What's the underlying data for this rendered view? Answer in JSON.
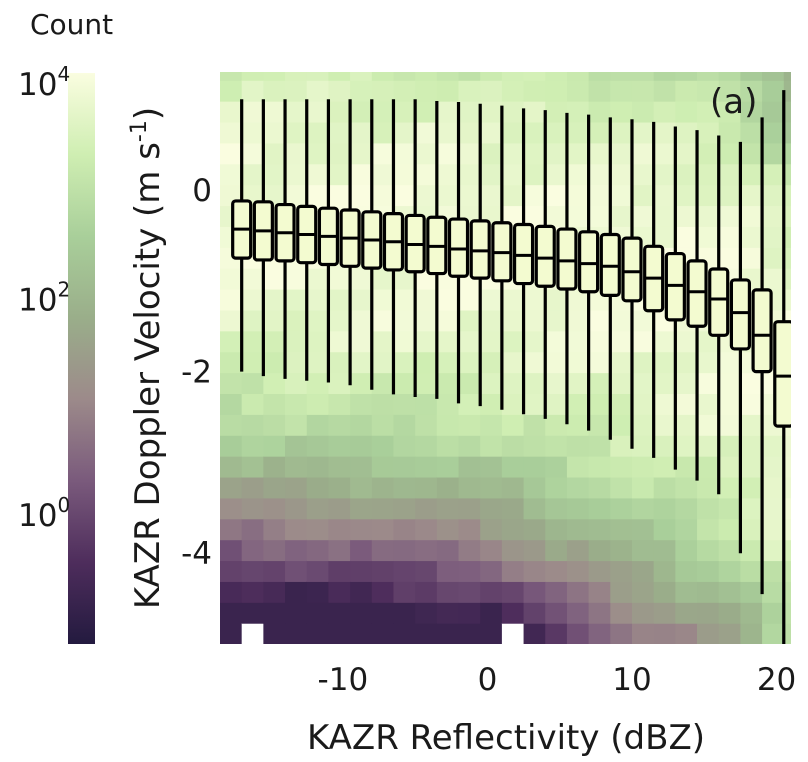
{
  "chart_data": {
    "type": "heatmap",
    "panel_label": "(a)",
    "xlabel": "KAZR Reflectivity (dBZ)",
    "ylabel_main": "KAZR Doppler Velocity (m s",
    "ylabel_exp": "-1",
    "ylabel_close": ")",
    "xlim": [
      -18.5,
      21
    ],
    "ylim": [
      -5,
      1.3
    ],
    "xticks": [
      -10,
      0,
      10,
      20
    ],
    "xtick_labels": [
      "-10",
      "0",
      "10",
      "20"
    ],
    "yticks": [
      0,
      -2,
      -4
    ],
    "ytick_labels": [
      "0",
      "-2",
      "-4"
    ],
    "heatmap_cell_dbz": 1.5,
    "heatmap_cell_ms": 0.23,
    "colorbar": {
      "title": "Count",
      "scale": "log",
      "range_log10": [
        -1.3,
        4
      ],
      "tick_log10": [
        4,
        2,
        0
      ],
      "tick_base": "10",
      "tick_exponents": [
        "4",
        "2",
        "0"
      ],
      "colors": [
        "#231a3f",
        "#4e2d5c",
        "#7a5a7c",
        "#9c8a8a",
        "#9aae8a",
        "#a9cf9a",
        "#cfeeb2",
        "#fafde0"
      ]
    },
    "empty_cells": [
      {
        "x_dbz": -16.5,
        "y_ms": -4.89
      },
      {
        "x_dbz": 1.5,
        "y_ms": -4.89
      }
    ],
    "boxplots": [
      {
        "x": -17,
        "whisker_low": -2.0,
        "q1": -0.75,
        "median": -0.43,
        "q3": -0.12,
        "whisker_high": 1.0
      },
      {
        "x": -15.5,
        "whisker_low": -2.05,
        "q1": -0.77,
        "median": -0.45,
        "q3": -0.13,
        "whisker_high": 1.0
      },
      {
        "x": -14,
        "whisker_low": -2.08,
        "q1": -0.78,
        "median": -0.47,
        "q3": -0.16,
        "whisker_high": 1.0
      },
      {
        "x": -12.5,
        "whisker_low": -2.1,
        "q1": -0.8,
        "median": -0.49,
        "q3": -0.18,
        "whisker_high": 1.0
      },
      {
        "x": -11,
        "whisker_low": -2.12,
        "q1": -0.82,
        "median": -0.51,
        "q3": -0.2,
        "whisker_high": 1.0
      },
      {
        "x": -9.5,
        "whisker_low": -2.15,
        "q1": -0.84,
        "median": -0.53,
        "q3": -0.22,
        "whisker_high": 1.0
      },
      {
        "x": -8,
        "whisker_low": -2.2,
        "q1": -0.86,
        "median": -0.55,
        "q3": -0.24,
        "whisker_high": 1.0
      },
      {
        "x": -6.5,
        "whisker_low": -2.25,
        "q1": -0.88,
        "median": -0.57,
        "q3": -0.26,
        "whisker_high": 1.0
      },
      {
        "x": -5,
        "whisker_low": -2.28,
        "q1": -0.9,
        "median": -0.6,
        "q3": -0.28,
        "whisker_high": 1.0
      },
      {
        "x": -3.5,
        "whisker_low": -2.3,
        "q1": -0.92,
        "median": -0.62,
        "q3": -0.3,
        "whisker_high": 0.98
      },
      {
        "x": -2,
        "whisker_low": -2.35,
        "q1": -0.95,
        "median": -0.65,
        "q3": -0.32,
        "whisker_high": 0.97
      },
      {
        "x": -0.5,
        "whisker_low": -2.38,
        "q1": -0.97,
        "median": -0.67,
        "q3": -0.34,
        "whisker_high": 0.95
      },
      {
        "x": 1,
        "whisker_low": -2.42,
        "q1": -1.0,
        "median": -0.69,
        "q3": -0.36,
        "whisker_high": 0.93
      },
      {
        "x": 2.5,
        "whisker_low": -2.47,
        "q1": -1.03,
        "median": -0.72,
        "q3": -0.38,
        "whisker_high": 0.9
      },
      {
        "x": 4,
        "whisker_low": -2.52,
        "q1": -1.06,
        "median": -0.75,
        "q3": -0.4,
        "whisker_high": 0.88
      },
      {
        "x": 5.5,
        "whisker_low": -2.58,
        "q1": -1.09,
        "median": -0.78,
        "q3": -0.43,
        "whisker_high": 0.85
      },
      {
        "x": 7,
        "whisker_low": -2.65,
        "q1": -1.12,
        "median": -0.81,
        "q3": -0.46,
        "whisker_high": 0.83
      },
      {
        "x": 8.5,
        "whisker_low": -2.75,
        "q1": -1.16,
        "median": -0.84,
        "q3": -0.49,
        "whisker_high": 0.8
      },
      {
        "x": 10,
        "whisker_low": -2.85,
        "q1": -1.22,
        "median": -0.9,
        "q3": -0.53,
        "whisker_high": 0.78
      },
      {
        "x": 11.5,
        "whisker_low": -2.95,
        "q1": -1.33,
        "median": -0.97,
        "q3": -0.62,
        "whisker_high": 0.75
      },
      {
        "x": 13,
        "whisker_low": -3.08,
        "q1": -1.43,
        "median": -1.05,
        "q3": -0.7,
        "whisker_high": 0.7
      },
      {
        "x": 14.5,
        "whisker_low": -3.2,
        "q1": -1.5,
        "median": -1.12,
        "q3": -0.78,
        "whisker_high": 0.66
      },
      {
        "x": 16,
        "whisker_low": -3.35,
        "q1": -1.6,
        "median": -1.2,
        "q3": -0.87,
        "whisker_high": 0.6
      },
      {
        "x": 17.5,
        "whisker_low": -4.0,
        "q1": -1.75,
        "median": -1.35,
        "q3": -0.99,
        "whisker_high": 0.53
      },
      {
        "x": 19,
        "whisker_low": -4.45,
        "q1": -2.0,
        "median": -1.6,
        "q3": -1.1,
        "whisker_high": 0.8
      },
      {
        "x": 20.5,
        "whisker_low": -5.0,
        "q1": -2.6,
        "median": -2.05,
        "q3": -1.45,
        "whisker_high": 1.1
      }
    ]
  }
}
